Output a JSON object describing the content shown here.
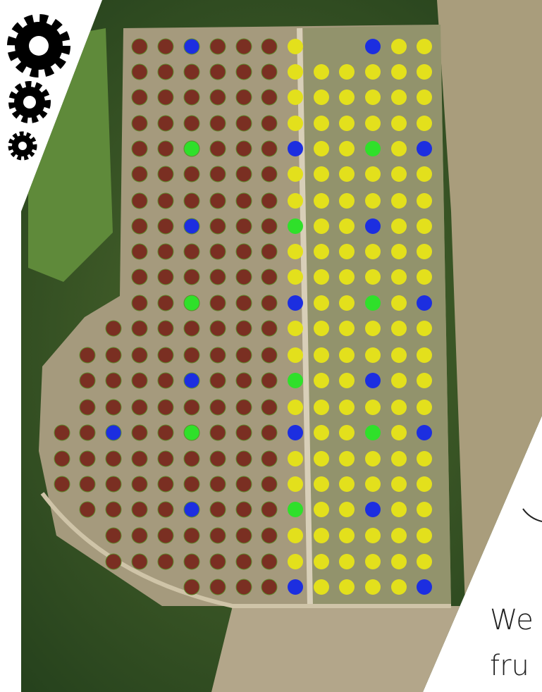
{
  "annotation": {
    "lines": [
      "We",
      "fru"
    ]
  }
}
